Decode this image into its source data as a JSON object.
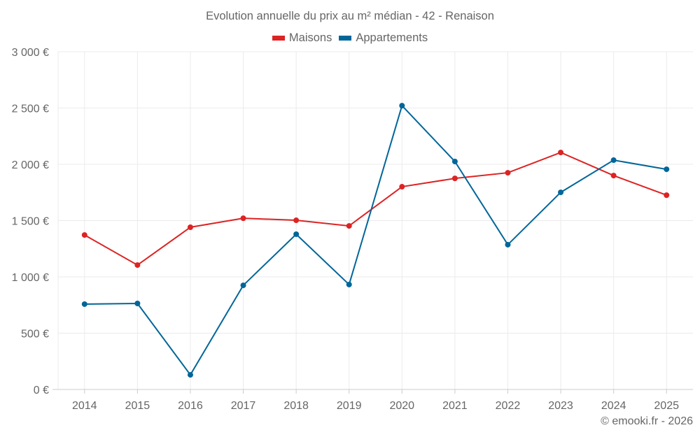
{
  "chart_data": {
    "type": "line",
    "title": "Evolution annuelle du prix au m² médian - 42 - Renaison",
    "xlabel": "",
    "ylabel": "",
    "categories": [
      "2014",
      "2015",
      "2016",
      "2017",
      "2018",
      "2019",
      "2020",
      "2021",
      "2022",
      "2023",
      "2024",
      "2025"
    ],
    "ylim": [
      0,
      3000
    ],
    "yticks": [
      0,
      500,
      1000,
      1500,
      2000,
      2500,
      3000
    ],
    "ytick_labels": [
      "0 €",
      "500 €",
      "1 000 €",
      "1 500 €",
      "2 000 €",
      "2 500 €",
      "3 000 €"
    ],
    "grid": true,
    "legend_position": "top-center",
    "series": [
      {
        "name": "Maisons",
        "color": "#dd2323",
        "values": [
          1372,
          1105,
          1441,
          1521,
          1503,
          1453,
          1801,
          1875,
          1925,
          2105,
          1900,
          1726
        ]
      },
      {
        "name": "Appartements",
        "color": "#006699",
        "values": [
          758,
          764,
          130,
          925,
          1379,
          932,
          2521,
          2025,
          1286,
          1751,
          2037,
          1956
        ]
      }
    ]
  },
  "credit": "© emooki.fr - 2026"
}
